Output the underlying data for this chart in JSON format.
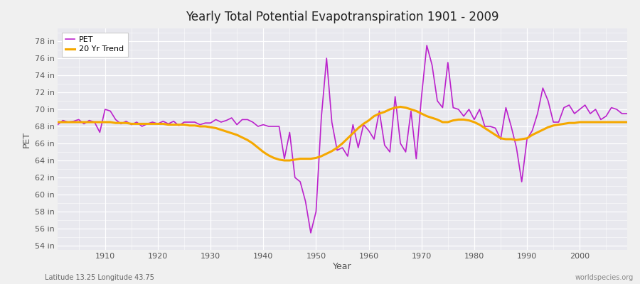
{
  "title": "Yearly Total Potential Evapotranspiration 1901 - 2009",
  "ylabel": "PET",
  "xlabel": "Year",
  "footnote_left": "Latitude 13.25 Longitude 43.75",
  "footnote_right": "worldspecies.org",
  "pet_color": "#bb22cc",
  "trend_color": "#f5a800",
  "fig_bg_color": "#f0f0f0",
  "plot_bg_color": "#e8e8ee",
  "ylim": [
    53.5,
    79.5
  ],
  "ytick_vals": [
    54,
    56,
    58,
    60,
    62,
    64,
    66,
    68,
    70,
    72,
    74,
    76,
    78
  ],
  "xtick_vals": [
    1910,
    1920,
    1930,
    1940,
    1950,
    1960,
    1970,
    1980,
    1990,
    2000
  ],
  "xlim": [
    1901,
    2009
  ],
  "years": [
    1901,
    1902,
    1903,
    1904,
    1905,
    1906,
    1907,
    1908,
    1909,
    1910,
    1911,
    1912,
    1913,
    1914,
    1915,
    1916,
    1917,
    1918,
    1919,
    1920,
    1921,
    1922,
    1923,
    1924,
    1925,
    1926,
    1927,
    1928,
    1929,
    1930,
    1931,
    1932,
    1933,
    1934,
    1935,
    1936,
    1937,
    1938,
    1939,
    1940,
    1941,
    1942,
    1943,
    1944,
    1945,
    1946,
    1947,
    1948,
    1949,
    1950,
    1951,
    1952,
    1953,
    1954,
    1955,
    1956,
    1957,
    1958,
    1959,
    1960,
    1961,
    1962,
    1963,
    1964,
    1965,
    1966,
    1967,
    1968,
    1969,
    1970,
    1971,
    1972,
    1973,
    1974,
    1975,
    1976,
    1977,
    1978,
    1979,
    1980,
    1981,
    1982,
    1983,
    1984,
    1985,
    1986,
    1987,
    1988,
    1989,
    1990,
    1991,
    1992,
    1993,
    1994,
    1995,
    1996,
    1997,
    1998,
    1999,
    2000,
    2001,
    2002,
    2003,
    2004,
    2005,
    2006,
    2007,
    2008,
    2009
  ],
  "pet_values": [
    68.2,
    68.7,
    68.5,
    68.6,
    68.8,
    68.3,
    68.7,
    68.5,
    67.3,
    70.0,
    69.8,
    68.8,
    68.3,
    68.6,
    68.2,
    68.5,
    68.0,
    68.3,
    68.5,
    68.3,
    68.6,
    68.3,
    68.6,
    68.1,
    68.5,
    68.5,
    68.5,
    68.2,
    68.4,
    68.4,
    68.8,
    68.5,
    68.7,
    69.0,
    68.2,
    68.8,
    68.8,
    68.5,
    68.0,
    68.2,
    68.0,
    68.0,
    68.0,
    64.2,
    67.3,
    62.0,
    61.5,
    59.2,
    55.5,
    58.0,
    69.0,
    76.0,
    68.5,
    65.2,
    65.5,
    64.5,
    68.2,
    65.5,
    68.2,
    67.5,
    66.5,
    69.8,
    65.8,
    65.0,
    71.5,
    66.0,
    65.0,
    69.8,
    64.2,
    71.5,
    77.5,
    75.2,
    71.0,
    70.2,
    75.5,
    70.2,
    70.0,
    69.2,
    70.0,
    68.8,
    70.0,
    68.0,
    68.0,
    67.8,
    66.5,
    70.2,
    68.0,
    65.5,
    61.5,
    66.5,
    67.5,
    69.5,
    72.5,
    71.0,
    68.5,
    68.5,
    70.2,
    70.5,
    69.5,
    70.0,
    70.5,
    69.5,
    70.0,
    68.8,
    69.2,
    70.2,
    70.0,
    69.5,
    69.5
  ],
  "trend_values": [
    68.5,
    68.5,
    68.5,
    68.5,
    68.5,
    68.5,
    68.5,
    68.5,
    68.5,
    68.5,
    68.5,
    68.4,
    68.4,
    68.4,
    68.3,
    68.3,
    68.3,
    68.3,
    68.3,
    68.3,
    68.3,
    68.2,
    68.2,
    68.2,
    68.2,
    68.1,
    68.1,
    68.0,
    68.0,
    67.9,
    67.8,
    67.6,
    67.4,
    67.2,
    67.0,
    66.7,
    66.4,
    66.0,
    65.5,
    65.0,
    64.6,
    64.3,
    64.1,
    64.0,
    64.0,
    64.1,
    64.2,
    64.2,
    64.2,
    64.3,
    64.5,
    64.8,
    65.1,
    65.5,
    66.0,
    66.6,
    67.2,
    67.8,
    68.3,
    68.7,
    69.2,
    69.5,
    69.7,
    70.0,
    70.2,
    70.3,
    70.2,
    70.0,
    69.8,
    69.5,
    69.2,
    69.0,
    68.8,
    68.5,
    68.5,
    68.7,
    68.8,
    68.8,
    68.7,
    68.5,
    68.2,
    67.8,
    67.4,
    67.0,
    66.6,
    66.5,
    66.5,
    66.4,
    66.5,
    66.6,
    67.0,
    67.3,
    67.6,
    67.9,
    68.1,
    68.2,
    68.3,
    68.4,
    68.4,
    68.5,
    68.5,
    68.5,
    68.5,
    68.5,
    68.5,
    68.5,
    68.5,
    68.5,
    68.5
  ]
}
